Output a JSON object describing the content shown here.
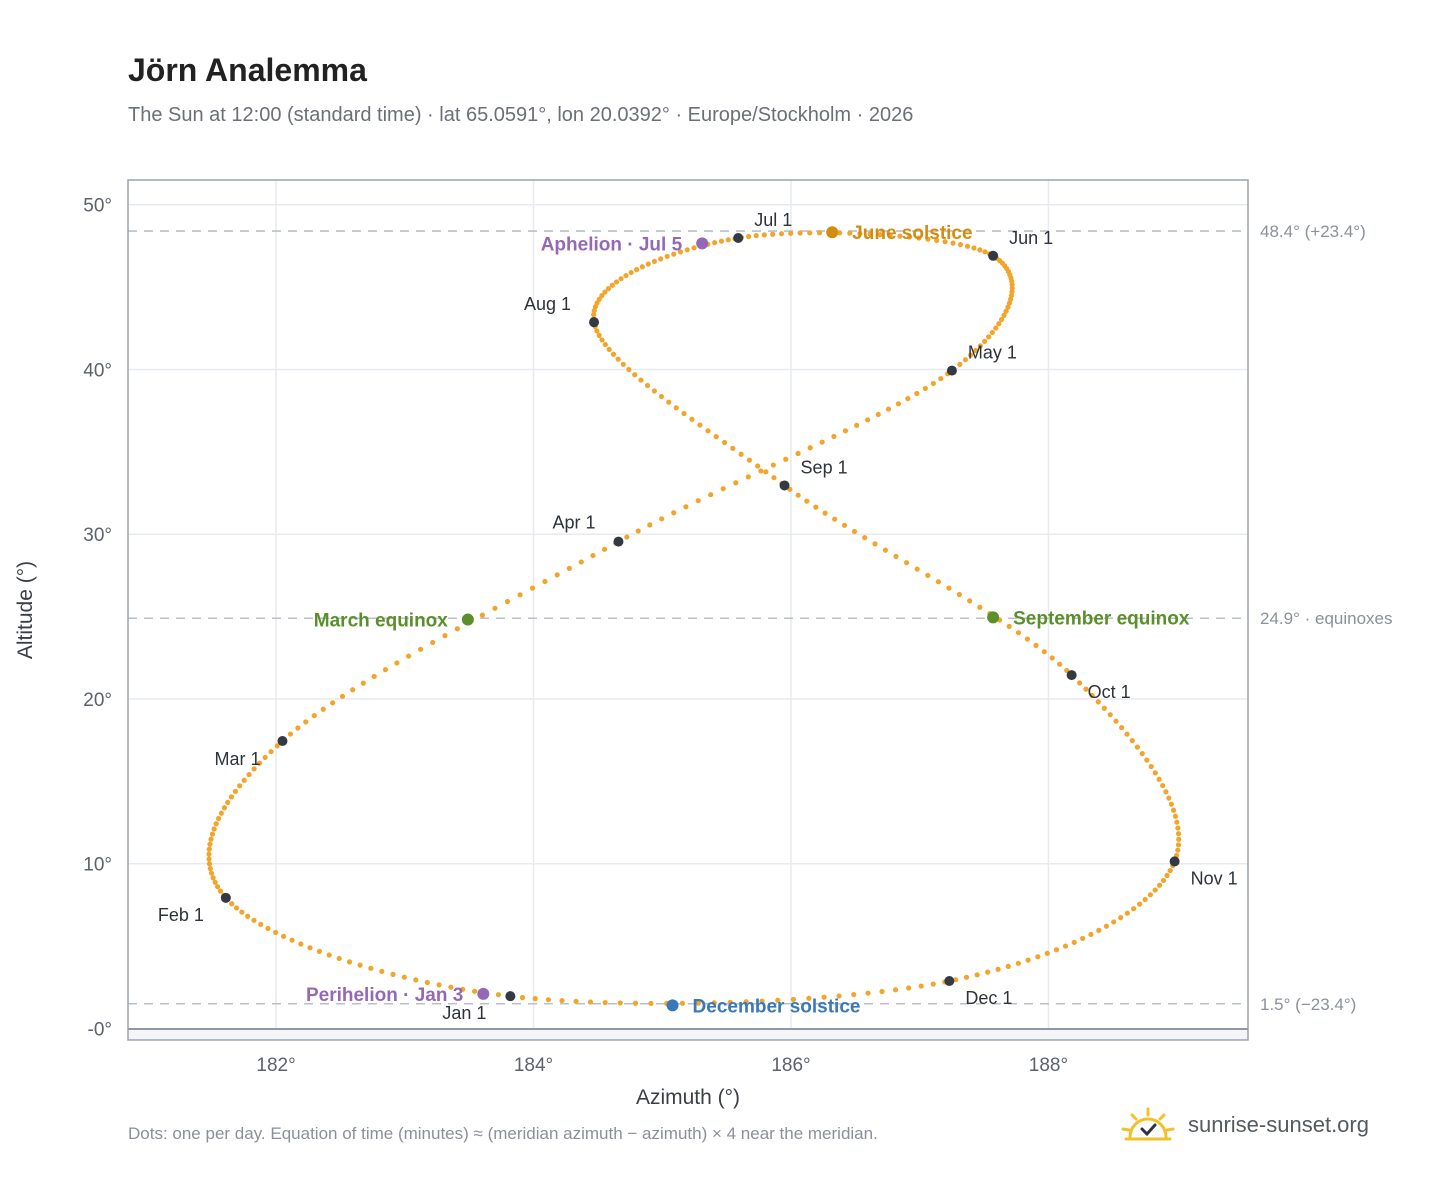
{
  "header": {
    "title": "Jörn Analemma",
    "subtitle": "The Sun at 12:00 (standard time) · lat 65.0591°, lon 20.0392° · Europe/Stockholm · 2026"
  },
  "footer": {
    "note": "Dots: one per day. Equation of time (minutes) ≈ (meridian azimuth − azimuth) × 4 near the meridian.",
    "brand": "sunrise-sunset.org"
  },
  "colors": {
    "path": "#f2a52a",
    "month_marker": "#343a43",
    "solstice_june": "#d38c12",
    "solstice_december": "#3a78b8",
    "equinox": "#5a8f2c",
    "apsis": "#9369b5",
    "reference_line": "#b9c0c9",
    "grid": "#e7eaef",
    "frame": "#9aa3ad",
    "brand_sun": "#f2c029"
  },
  "chart_data": {
    "type": "scatter",
    "title": "Jörn Analemma",
    "xlabel": "Azimuth (°)",
    "ylabel": "Altitude (°)",
    "xlim": [
      180.85,
      189.55
    ],
    "ylim": [
      -0.7,
      51.5
    ],
    "x_ticks": [
      182,
      184,
      186,
      188
    ],
    "x_tick_labels": [
      "182°",
      "184°",
      "186°",
      "188°"
    ],
    "y_ticks": [
      0,
      10,
      20,
      30,
      40,
      50
    ],
    "y_tick_labels": [
      "-0°",
      "10°",
      "20°",
      "30°",
      "40°",
      "50°"
    ],
    "grid": true,
    "month_markers": [
      {
        "label": "Jan 1",
        "x": 183.82,
        "y": 1.96
      },
      {
        "label": "Feb 1",
        "x": 181.61,
        "y": 7.93
      },
      {
        "label": "Mar 1",
        "x": 182.05,
        "y": 17.45
      },
      {
        "label": "Apr 1",
        "x": 184.66,
        "y": 29.55
      },
      {
        "label": "May 1",
        "x": 187.25,
        "y": 39.93
      },
      {
        "label": "Jun 1",
        "x": 187.57,
        "y": 46.9
      },
      {
        "label": "Jul 1",
        "x": 185.59,
        "y": 47.98
      },
      {
        "label": "Aug 1",
        "x": 184.47,
        "y": 42.87
      },
      {
        "label": "Sep 1",
        "x": 185.95,
        "y": 32.96
      },
      {
        "label": "Oct 1",
        "x": 188.18,
        "y": 21.45
      },
      {
        "label": "Nov 1",
        "x": 188.98,
        "y": 10.14
      },
      {
        "label": "Dec 1",
        "x": 187.23,
        "y": 2.88
      }
    ],
    "events": [
      {
        "label": "June solstice",
        "x": 186.32,
        "y": 48.33,
        "kind": "solstice_june"
      },
      {
        "label": "December solstice",
        "x": 185.08,
        "y": 1.4,
        "kind": "solstice_december"
      },
      {
        "label": "March equinox",
        "x": 183.49,
        "y": 24.82,
        "kind": "equinox"
      },
      {
        "label": "September equinox",
        "x": 187.57,
        "y": 24.95,
        "kind": "equinox"
      },
      {
        "label": "Aphelion · Jul 5",
        "x": 185.31,
        "y": 47.65,
        "kind": "apsis"
      },
      {
        "label": "Perihelion · Jan 3",
        "x": 183.61,
        "y": 2.1,
        "kind": "apsis"
      }
    ],
    "reference_lines": [
      {
        "y": 48.4,
        "label": "48.4° (+23.4°)"
      },
      {
        "y": 24.9,
        "label": "24.9° · equinoxes"
      },
      {
        "y": 1.5,
        "label": "1.5° (−23.4°)"
      }
    ]
  }
}
